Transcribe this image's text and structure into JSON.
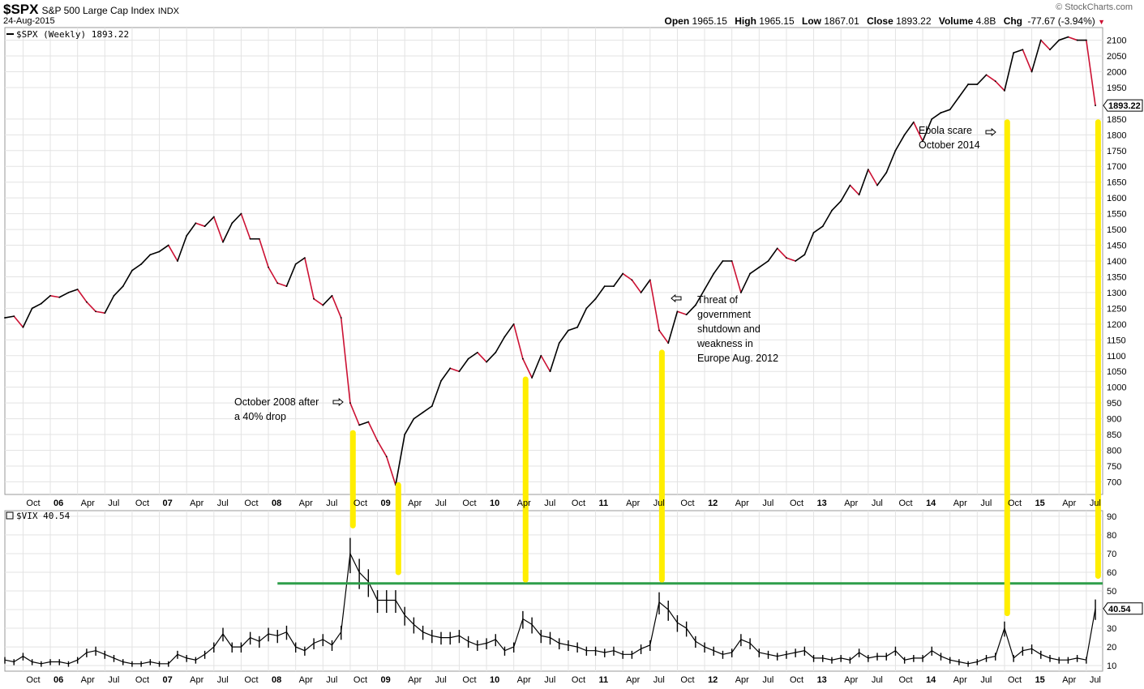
{
  "header": {
    "ticker": "$SPX",
    "name": "S&P 500 Large Cap Index",
    "exchange": "INDX",
    "date": "24-Aug-2015",
    "brand": "© StockCharts.com",
    "open_label": "Open",
    "open": "1965.15",
    "high_label": "High",
    "high": "1965.15",
    "low_label": "Low",
    "low": "1867.01",
    "close_label": "Close",
    "close": "1893.22",
    "volume_label": "Volume",
    "volume": "4.8B",
    "chg_label": "Chg",
    "chg": "-77.67 (-3.94%)",
    "chg_arrow": "▼"
  },
  "annotations": {
    "oct2008": "October 2008 after\na 40% drop",
    "aug2012": "Threat of\ngovernment\nshutdown and\nweakness in\nEurope Aug. 2012",
    "ebola": "Ebola scare\nOctober 2014"
  },
  "chart_data": [
    {
      "type": "line",
      "legend": "$SPX (Weekly) 1893.22",
      "last_value_label": "1893.22",
      "y_ticks": [
        700,
        750,
        800,
        850,
        900,
        950,
        1000,
        1050,
        1100,
        1150,
        1200,
        1250,
        1300,
        1350,
        1400,
        1450,
        1500,
        1550,
        1600,
        1650,
        1700,
        1750,
        1800,
        1850,
        1950,
        2000,
        2050,
        2100
      ],
      "ylim": [
        660,
        2140
      ],
      "colors": {
        "up": "#000000",
        "down": "#cc1133"
      },
      "x": [
        "2005-08",
        "2005-09",
        "2005-10",
        "2005-11",
        "2005-12",
        "2006-01",
        "2006-02",
        "2006-03",
        "2006-04",
        "2006-05",
        "2006-06",
        "2006-07",
        "2006-08",
        "2006-09",
        "2006-10",
        "2006-11",
        "2006-12",
        "2007-01",
        "2007-02",
        "2007-03",
        "2007-04",
        "2007-05",
        "2007-06",
        "2007-07",
        "2007-08",
        "2007-09",
        "2007-10",
        "2007-11",
        "2007-12",
        "2008-01",
        "2008-02",
        "2008-03",
        "2008-04",
        "2008-05",
        "2008-06",
        "2008-07",
        "2008-08",
        "2008-09",
        "2008-10",
        "2008-11",
        "2008-12",
        "2009-01",
        "2009-02",
        "2009-03",
        "2009-04",
        "2009-05",
        "2009-06",
        "2009-07",
        "2009-08",
        "2009-09",
        "2009-10",
        "2009-11",
        "2009-12",
        "2010-01",
        "2010-02",
        "2010-03",
        "2010-04",
        "2010-05",
        "2010-06",
        "2010-07",
        "2010-08",
        "2010-09",
        "2010-10",
        "2010-11",
        "2010-12",
        "2011-01",
        "2011-02",
        "2011-03",
        "2011-04",
        "2011-05",
        "2011-06",
        "2011-07",
        "2011-08",
        "2011-09",
        "2011-10",
        "2011-11",
        "2011-12",
        "2012-01",
        "2012-02",
        "2012-03",
        "2012-04",
        "2012-05",
        "2012-06",
        "2012-07",
        "2012-08",
        "2012-09",
        "2012-10",
        "2012-11",
        "2012-12",
        "2013-01",
        "2013-02",
        "2013-03",
        "2013-04",
        "2013-05",
        "2013-06",
        "2013-07",
        "2013-08",
        "2013-09",
        "2013-10",
        "2013-11",
        "2013-12",
        "2014-01",
        "2014-02",
        "2014-03",
        "2014-04",
        "2014-05",
        "2014-06",
        "2014-07",
        "2014-08",
        "2014-09",
        "2014-10",
        "2014-11",
        "2014-12",
        "2015-01",
        "2015-02",
        "2015-03",
        "2015-04",
        "2015-05",
        "2015-06",
        "2015-07",
        "2015-08"
      ],
      "values": [
        1220,
        1225,
        1190,
        1250,
        1265,
        1290,
        1285,
        1300,
        1310,
        1270,
        1240,
        1235,
        1290,
        1320,
        1370,
        1390,
        1420,
        1430,
        1450,
        1400,
        1480,
        1520,
        1510,
        1540,
        1460,
        1520,
        1550,
        1470,
        1470,
        1380,
        1330,
        1320,
        1390,
        1410,
        1280,
        1260,
        1290,
        1220,
        950,
        880,
        890,
        830,
        780,
        690,
        850,
        900,
        920,
        940,
        1020,
        1060,
        1050,
        1090,
        1110,
        1080,
        1110,
        1160,
        1200,
        1090,
        1030,
        1100,
        1050,
        1140,
        1180,
        1190,
        1250,
        1280,
        1320,
        1320,
        1360,
        1340,
        1300,
        1340,
        1180,
        1140,
        1240,
        1230,
        1260,
        1310,
        1360,
        1400,
        1400,
        1300,
        1360,
        1380,
        1400,
        1440,
        1410,
        1400,
        1420,
        1490,
        1510,
        1560,
        1590,
        1640,
        1610,
        1690,
        1640,
        1680,
        1750,
        1800,
        1840,
        1780,
        1850,
        1870,
        1880,
        1920,
        1960,
        1960,
        1990,
        1970,
        1940,
        2060,
        2070,
        2000,
        2100,
        2070,
        2100,
        2110,
        2100,
        2100,
        1893
      ],
      "x_ticks": [
        "Oct",
        "06",
        "Apr",
        "Jul",
        "Oct",
        "07",
        "Apr",
        "Jul",
        "Oct",
        "08",
        "Apr",
        "Jul",
        "Oct",
        "09",
        "Apr",
        "Jul",
        "Oct",
        "10",
        "Apr",
        "Jul",
        "Oct",
        "11",
        "Apr",
        "Jul",
        "Oct",
        "12",
        "Apr",
        "Jul",
        "Oct",
        "13",
        "Apr",
        "Jul",
        "Oct",
        "14",
        "Apr",
        "Jul",
        "Oct",
        "15",
        "Apr",
        "Jul"
      ]
    },
    {
      "type": "line",
      "legend": "$VIX 40.54",
      "last_value_label": "40.54",
      "y_ticks": [
        10,
        20,
        30,
        40,
        50,
        60,
        70,
        80,
        90
      ],
      "ylim": [
        7,
        93
      ],
      "colors": {
        "series": "#000000",
        "threshold": "#2e9e4a"
      },
      "threshold": 54,
      "x": [
        "2005-08",
        "2005-09",
        "2005-10",
        "2005-11",
        "2005-12",
        "2006-01",
        "2006-02",
        "2006-03",
        "2006-04",
        "2006-05",
        "2006-06",
        "2006-07",
        "2006-08",
        "2006-09",
        "2006-10",
        "2006-11",
        "2006-12",
        "2007-01",
        "2007-02",
        "2007-03",
        "2007-04",
        "2007-05",
        "2007-06",
        "2007-07",
        "2007-08",
        "2007-09",
        "2007-10",
        "2007-11",
        "2007-12",
        "2008-01",
        "2008-02",
        "2008-03",
        "2008-04",
        "2008-05",
        "2008-06",
        "2008-07",
        "2008-08",
        "2008-09",
        "2008-10",
        "2008-11",
        "2008-12",
        "2009-01",
        "2009-02",
        "2009-03",
        "2009-04",
        "2009-05",
        "2009-06",
        "2009-07",
        "2009-08",
        "2009-09",
        "2009-10",
        "2009-11",
        "2009-12",
        "2010-01",
        "2010-02",
        "2010-03",
        "2010-04",
        "2010-05",
        "2010-06",
        "2010-07",
        "2010-08",
        "2010-09",
        "2010-10",
        "2010-11",
        "2010-12",
        "2011-01",
        "2011-02",
        "2011-03",
        "2011-04",
        "2011-05",
        "2011-06",
        "2011-07",
        "2011-08",
        "2011-09",
        "2011-10",
        "2011-11",
        "2011-12",
        "2012-01",
        "2012-02",
        "2012-03",
        "2012-04",
        "2012-05",
        "2012-06",
        "2012-07",
        "2012-08",
        "2012-09",
        "2012-10",
        "2012-11",
        "2012-12",
        "2013-01",
        "2013-02",
        "2013-03",
        "2013-04",
        "2013-05",
        "2013-06",
        "2013-07",
        "2013-08",
        "2013-09",
        "2013-10",
        "2013-11",
        "2013-12",
        "2014-01",
        "2014-02",
        "2014-03",
        "2014-04",
        "2014-05",
        "2014-06",
        "2014-07",
        "2014-08",
        "2014-09",
        "2014-10",
        "2014-11",
        "2014-12",
        "2015-01",
        "2015-02",
        "2015-03",
        "2015-04",
        "2015-05",
        "2015-06",
        "2015-07",
        "2015-08"
      ],
      "values": [
        13,
        12,
        15,
        12,
        11,
        12,
        12,
        11,
        13,
        17,
        18,
        16,
        14,
        12,
        11,
        11,
        12,
        11,
        11,
        16,
        14,
        13,
        16,
        20,
        27,
        20,
        20,
        25,
        23,
        27,
        26,
        28,
        20,
        18,
        22,
        24,
        21,
        28,
        70,
        60,
        55,
        45,
        45,
        45,
        37,
        32,
        28,
        26,
        25,
        25,
        26,
        23,
        21,
        22,
        24,
        18,
        20,
        35,
        32,
        26,
        25,
        22,
        21,
        20,
        18,
        18,
        17,
        18,
        16,
        16,
        19,
        21,
        44,
        40,
        33,
        30,
        23,
        20,
        18,
        16,
        17,
        24,
        22,
        17,
        16,
        15,
        16,
        17,
        18,
        14,
        14,
        13,
        14,
        13,
        17,
        14,
        15,
        15,
        18,
        13,
        14,
        14,
        18,
        15,
        13,
        12,
        11,
        12,
        14,
        15,
        30,
        14,
        18,
        19,
        16,
        14,
        13,
        13,
        14,
        13,
        40.54
      ],
      "x_ticks": [
        "Oct",
        "06",
        "Apr",
        "Jul",
        "Oct",
        "07",
        "Apr",
        "Jul",
        "Oct",
        "08",
        "Apr",
        "Jul",
        "Oct",
        "09",
        "Apr",
        "Jul",
        "Oct",
        "10",
        "Apr",
        "Jul",
        "Oct",
        "11",
        "Apr",
        "Jul",
        "Oct",
        "12",
        "Apr",
        "Jul",
        "Oct",
        "13",
        "Apr",
        "Jul",
        "Oct",
        "14",
        "Apr",
        "Jul",
        "Oct",
        "15",
        "Apr",
        "Jul"
      ]
    }
  ],
  "markers": {
    "color": "#ffee00",
    "dates": [
      "2008-10",
      "2009-03",
      "2010-05",
      "2011-08",
      "2014-10",
      "2015-08"
    ]
  }
}
